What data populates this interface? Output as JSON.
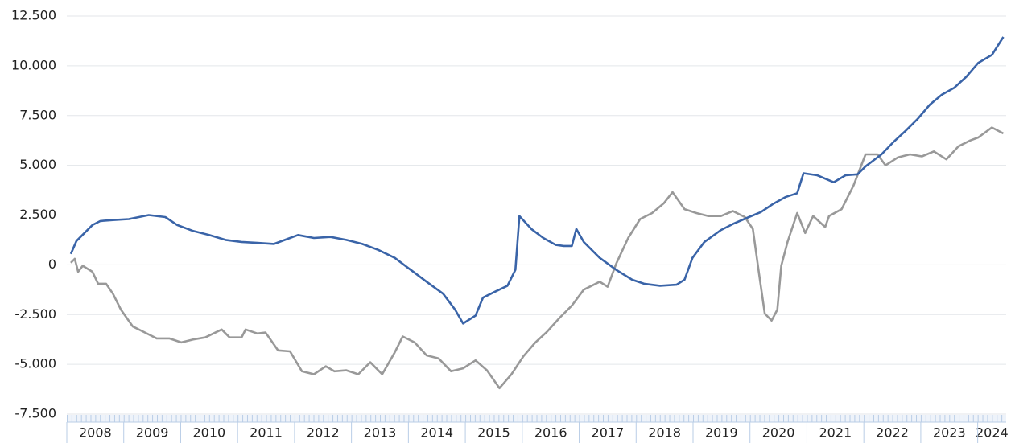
{
  "chart_data": {
    "type": "line",
    "xlim": [
      2008,
      2024.5
    ],
    "xticks": [
      {
        "value": 2008.5,
        "label": "2008"
      },
      {
        "value": 2009.5,
        "label": "2009"
      },
      {
        "value": 2010.5,
        "label": "2010"
      },
      {
        "value": 2011.5,
        "label": "2011"
      },
      {
        "value": 2012.5,
        "label": "2012"
      },
      {
        "value": 2013.5,
        "label": "2013"
      },
      {
        "value": 2014.5,
        "label": "2014"
      },
      {
        "value": 2015.5,
        "label": "2015"
      },
      {
        "value": 2016.5,
        "label": "2016"
      },
      {
        "value": 2017.5,
        "label": "2017"
      },
      {
        "value": 2018.5,
        "label": "2018"
      },
      {
        "value": 2019.5,
        "label": "2019"
      },
      {
        "value": 2020.5,
        "label": "2020"
      },
      {
        "value": 2021.5,
        "label": "2021"
      },
      {
        "value": 2022.5,
        "label": "2022"
      },
      {
        "value": 2023.5,
        "label": "2023"
      },
      {
        "value": 2024.25,
        "label": "2024"
      }
    ],
    "ylim": [
      -7500,
      12500
    ],
    "yticks": [
      {
        "value": -7500,
        "label": "-7.500"
      },
      {
        "value": -5000,
        "label": "-5.000"
      },
      {
        "value": -2500,
        "label": "-2.500"
      },
      0,
      {
        "value": 2500,
        "label": "2.500"
      },
      {
        "value": 5000,
        "label": "5.000"
      },
      {
        "value": 7500,
        "label": "7.500"
      },
      {
        "value": 10000,
        "label": "10.000"
      },
      {
        "value": 12500,
        "label": "12.500"
      }
    ],
    "grid": true,
    "series": [
      {
        "color": "#999999",
        "x": [
          2008.07,
          2008.14,
          2008.2,
          2008.28,
          2008.45,
          2008.55,
          2008.69,
          2008.81,
          2008.95,
          2009.16,
          2009.37,
          2009.58,
          2009.8,
          2010.01,
          2010.22,
          2010.43,
          2010.72,
          2010.86,
          2011.07,
          2011.14,
          2011.35,
          2011.49,
          2011.71,
          2011.92,
          2012.13,
          2012.34,
          2012.55,
          2012.7,
          2012.91,
          2013.12,
          2013.33,
          2013.54,
          2013.76,
          2013.9,
          2014.11,
          2014.32,
          2014.53,
          2014.75,
          2014.96,
          2015.18,
          2015.38,
          2015.6,
          2015.81,
          2016.02,
          2016.23,
          2016.44,
          2016.66,
          2016.87,
          2017.08,
          2017.36,
          2017.5,
          2017.65,
          2017.86,
          2018.07,
          2018.28,
          2018.49,
          2018.64,
          2018.85,
          2019.06,
          2019.27,
          2019.49,
          2019.7,
          2019.91,
          2020.05,
          2020.16,
          2020.26,
          2020.38,
          2020.48,
          2020.55,
          2020.66,
          2020.83,
          2020.97,
          2021.11,
          2021.32,
          2021.39,
          2021.61,
          2021.82,
          2022.03,
          2022.24,
          2022.38,
          2022.6,
          2022.81,
          2023.02,
          2023.23,
          2023.45,
          2023.66,
          2023.87,
          2024.01,
          2024.25,
          2024.45
        ],
        "values": [
          100,
          300,
          -350,
          -50,
          -350,
          -950,
          -950,
          -1450,
          -2250,
          -3100,
          -3400,
          -3700,
          -3700,
          -3900,
          -3750,
          -3650,
          -3250,
          -3650,
          -3650,
          -3250,
          -3450,
          -3400,
          -4300,
          -4350,
          -5350,
          -5500,
          -5100,
          -5350,
          -5300,
          -5500,
          -4900,
          -5500,
          -4400,
          -3600,
          -3900,
          -4550,
          -4700,
          -5350,
          -5200,
          -4800,
          -5300,
          -6200,
          -5500,
          -4600,
          -3900,
          -3350,
          -2650,
          -2050,
          -1250,
          -850,
          -1100,
          50,
          1350,
          2300,
          2600,
          3100,
          3650,
          2800,
          2600,
          2450,
          2450,
          2700,
          2400,
          1800,
          -450,
          -2450,
          -2800,
          -2250,
          -50,
          1150,
          2600,
          1600,
          2450,
          1900,
          2450,
          2800,
          4000,
          5550,
          5550,
          5000,
          5400,
          5550,
          5450,
          5700,
          5300,
          5950,
          6250,
          6400,
          6900,
          6600
        ]
      },
      {
        "color": "#3a64a8",
        "x": [
          2008.07,
          2008.17,
          2008.45,
          2008.59,
          2008.81,
          2009.09,
          2009.44,
          2009.73,
          2009.94,
          2010.22,
          2010.5,
          2010.79,
          2011.07,
          2011.35,
          2011.64,
          2011.92,
          2012.06,
          2012.34,
          2012.63,
          2012.91,
          2013.19,
          2013.47,
          2013.76,
          2014.04,
          2014.32,
          2014.61,
          2014.82,
          2014.96,
          2015.18,
          2015.31,
          2015.52,
          2015.74,
          2015.88,
          2015.95,
          2016.16,
          2016.37,
          2016.59,
          2016.73,
          2016.87,
          2016.95,
          2017.08,
          2017.36,
          2017.65,
          2017.93,
          2018.14,
          2018.42,
          2018.71,
          2018.85,
          2018.99,
          2019.2,
          2019.49,
          2019.7,
          2019.98,
          2020.19,
          2020.4,
          2020.62,
          2020.83,
          2020.94,
          2021.18,
          2021.47,
          2021.68,
          2021.89,
          2022.03,
          2022.31,
          2022.53,
          2022.74,
          2022.95,
          2023.16,
          2023.37,
          2023.59,
          2023.8,
          2024.01,
          2024.25,
          2024.45
        ],
        "values": [
          550,
          1200,
          2000,
          2200,
          2250,
          2300,
          2500,
          2400,
          2000,
          1700,
          1500,
          1250,
          1150,
          1100,
          1050,
          1350,
          1500,
          1350,
          1400,
          1250,
          1050,
          750,
          350,
          -250,
          -850,
          -1450,
          -2250,
          -2950,
          -2550,
          -1650,
          -1350,
          -1050,
          -250,
          2450,
          1800,
          1350,
          1000,
          950,
          950,
          1800,
          1150,
          350,
          -250,
          -750,
          -950,
          -1050,
          -1000,
          -750,
          350,
          1150,
          1750,
          2050,
          2400,
          2650,
          3050,
          3400,
          3600,
          4600,
          4500,
          4150,
          4500,
          4550,
          4950,
          5550,
          6200,
          6750,
          7350,
          8050,
          8550,
          8900,
          9450,
          10150,
          10550,
          11450
        ]
      }
    ]
  }
}
